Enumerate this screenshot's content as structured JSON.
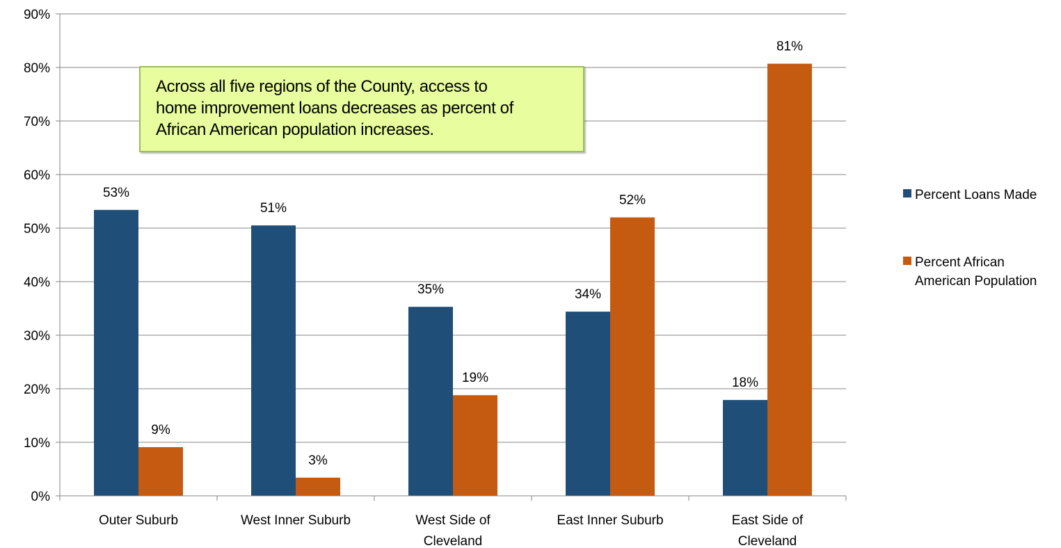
{
  "chart_data": {
    "type": "bar",
    "categories": [
      [
        "Outer Suburb"
      ],
      [
        "West Inner Suburb"
      ],
      [
        "West Side of",
        "Cleveland"
      ],
      [
        "East Inner Suburb"
      ],
      [
        "East Side of",
        "Cleveland"
      ]
    ],
    "series": [
      {
        "name": "Percent Loans Made",
        "color": "#1f4e79",
        "values": [
          53.4,
          50.5,
          35.3,
          34.4,
          17.9
        ],
        "labels": [
          "53%",
          "51%",
          "35%",
          "34%",
          "18%"
        ]
      },
      {
        "name": "Percent African American Population",
        "legend_lines": [
          "Percent African",
          "American Population"
        ],
        "color": "#c55a11",
        "values": [
          9.1,
          3.4,
          18.8,
          52.0,
          80.7
        ],
        "labels": [
          "9%",
          "3%",
          "19%",
          "52%",
          "81%"
        ]
      }
    ],
    "ylim": [
      0,
      90
    ],
    "yticks": [
      0,
      10,
      20,
      30,
      40,
      50,
      60,
      70,
      80,
      90
    ],
    "ytick_labels": [
      "0%",
      "10%",
      "20%",
      "30%",
      "40%",
      "50%",
      "60%",
      "70%",
      "80%",
      "90%"
    ],
    "grid": true,
    "legend_position": "right",
    "title": "",
    "xlabel": "",
    "ylabel": "",
    "annotation": {
      "lines": [
        "Across all five regions of the County, access to",
        "home improvement loans decreases as percent of",
        "African American population increases."
      ],
      "background": "#e8fd9d",
      "border": "#9bbb59"
    }
  }
}
